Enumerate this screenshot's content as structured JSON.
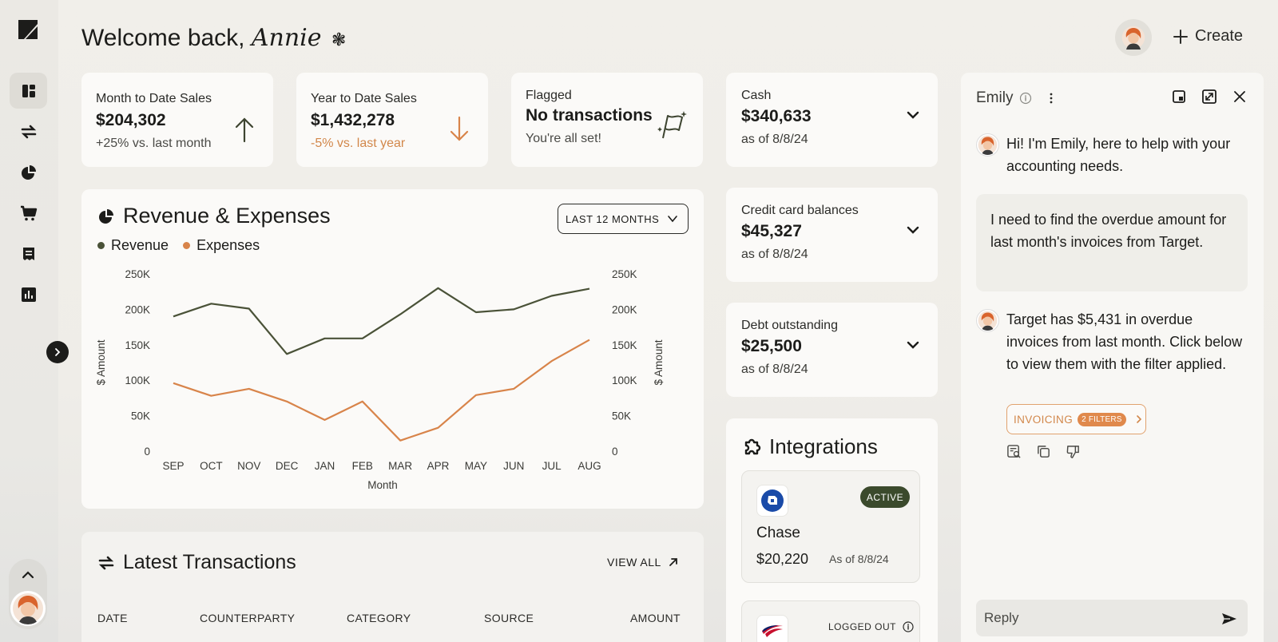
{
  "header": {
    "welcome_prefix": "Welcome back,",
    "user_name": "Annie",
    "create_label": "Create"
  },
  "kpis": [
    {
      "label": "Month to Date Sales",
      "value": "$204,302",
      "change": "+25% vs. last month",
      "trend": "up"
    },
    {
      "label": "Year to Date Sales",
      "value": "$1,432,278",
      "change": "-5% vs. last year",
      "trend": "down"
    },
    {
      "label": "Flagged",
      "value": "No transactions",
      "change": "You're all set!"
    }
  ],
  "accounts": [
    {
      "label": "Cash",
      "value": "$340,633",
      "as_of": "as of 8/8/24"
    },
    {
      "label": "Credit card balances",
      "value": "$45,327",
      "as_of": "as of 8/8/24"
    },
    {
      "label": "Debt outstanding",
      "value": "$25,500",
      "as_of": "as of 8/8/24"
    }
  ],
  "revenue_chart": {
    "title": "Revenue & Expenses",
    "range_label": "LAST 12 MONTHS",
    "legend": [
      "Revenue",
      "Expenses"
    ]
  },
  "chart_data": {
    "type": "line",
    "categories": [
      "SEP",
      "OCT",
      "NOV",
      "DEC",
      "JAN",
      "FEB",
      "MAR",
      "APR",
      "MAY",
      "JUN",
      "JUL",
      "AUG"
    ],
    "series": [
      {
        "name": "Revenue",
        "color": "#4a5238",
        "values": [
          190000,
          208000,
          201000,
          137000,
          159000,
          159000,
          193000,
          230000,
          196000,
          200000,
          219000,
          229000
        ]
      },
      {
        "name": "Expenses",
        "color": "#d8844a",
        "values": [
          96000,
          78000,
          88000,
          70000,
          44000,
          70000,
          15000,
          33000,
          79000,
          88000,
          127000,
          157000
        ]
      }
    ],
    "xlabel": "Month",
    "ylabel": "$ Amount",
    "y2label": "$ Amount",
    "ylim": [
      0,
      250000
    ],
    "yticks": [
      "0",
      "50K",
      "100K",
      "150K",
      "200K",
      "250K"
    ],
    "grid": false,
    "legend_position": "top-left"
  },
  "transactions": {
    "title": "Latest Transactions",
    "view_all": "VIEW ALL",
    "columns": [
      "DATE",
      "COUNTERPARTY",
      "CATEGORY",
      "SOURCE",
      "AMOUNT"
    ]
  },
  "integrations": {
    "title": "Integrations",
    "items": [
      {
        "name": "Chase",
        "status": "ACTIVE",
        "amount": "$20,220",
        "as_of": "As of 8/8/24"
      },
      {
        "status": "LOGGED OUT"
      }
    ]
  },
  "chat": {
    "assistant_name": "Emily",
    "messages": [
      {
        "from": "assistant",
        "text": "Hi! I'm Emily, here to help with your accounting needs."
      },
      {
        "from": "user",
        "text": "I need to find the overdue amount for last month's invoices from Target."
      },
      {
        "from": "assistant",
        "text": "Target has $5,431 in overdue invoices from last month. Click below to view them with the filter applied."
      }
    ],
    "filter_chip": {
      "label": "INVOICING",
      "count": "2 FILTERS"
    },
    "reply_placeholder": "Reply"
  },
  "colors": {
    "revenue": "#4a5238",
    "expenses": "#d8844a",
    "active_badge": "#3b4a2c",
    "accent_orange": "#e0894c"
  }
}
